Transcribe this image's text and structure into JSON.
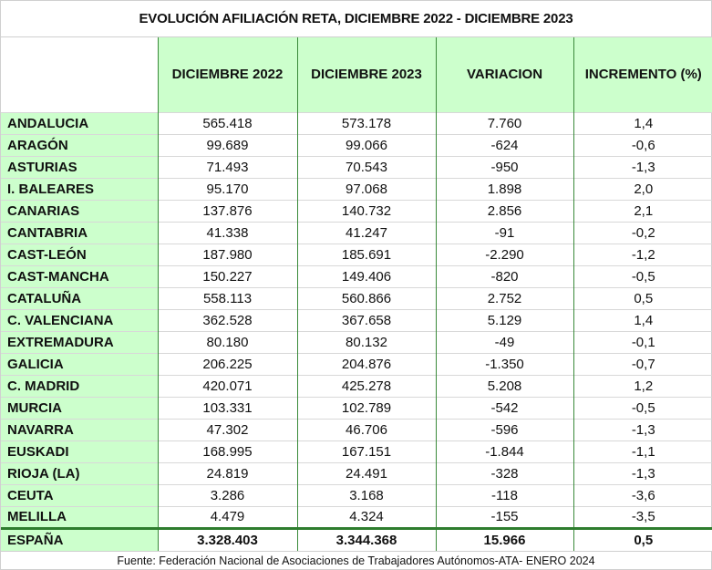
{
  "title": "EVOLUCIÓN AFILIACIÓN  RETA, DICIEMBRE 2022 - DICIEMBRE 2023",
  "headers": [
    "",
    "DICIEMBRE 2022",
    "DICIEMBRE 2023",
    "VARIACION",
    "INCREMENTO (%)"
  ],
  "rows": [
    [
      "ANDALUCIA",
      "565.418",
      "573.178",
      "7.760",
      "1,4"
    ],
    [
      "ARAGÓN",
      "99.689",
      "99.066",
      "-624",
      "-0,6"
    ],
    [
      "ASTURIAS",
      "71.493",
      "70.543",
      "-950",
      "-1,3"
    ],
    [
      "I. BALEARES",
      "95.170",
      "97.068",
      "1.898",
      "2,0"
    ],
    [
      "CANARIAS",
      "137.876",
      "140.732",
      "2.856",
      "2,1"
    ],
    [
      "CANTABRIA",
      "41.338",
      "41.247",
      "-91",
      "-0,2"
    ],
    [
      "CAST-LEÓN",
      "187.980",
      "185.691",
      "-2.290",
      "-1,2"
    ],
    [
      "CAST-MANCHA",
      "150.227",
      "149.406",
      "-820",
      "-0,5"
    ],
    [
      "CATALUÑA",
      "558.113",
      "560.866",
      "2.752",
      "0,5"
    ],
    [
      "C. VALENCIANA",
      "362.528",
      "367.658",
      "5.129",
      "1,4"
    ],
    [
      "EXTREMADURA",
      "80.180",
      "80.132",
      "-49",
      "-0,1"
    ],
    [
      "GALICIA",
      "206.225",
      "204.876",
      "-1.350",
      "-0,7"
    ],
    [
      "C. MADRID",
      "420.071",
      "425.278",
      "5.208",
      "1,2"
    ],
    [
      "MURCIA",
      "103.331",
      "102.789",
      "-542",
      "-0,5"
    ],
    [
      "NAVARRA",
      "47.302",
      "46.706",
      "-596",
      "-1,3"
    ],
    [
      "EUSKADI",
      "168.995",
      "167.151",
      "-1.844",
      "-1,1"
    ],
    [
      "RIOJA (LA)",
      "24.819",
      "24.491",
      "-328",
      "-1,3"
    ],
    [
      "CEUTA",
      "3.286",
      "3.168",
      "-118",
      "-3,6"
    ],
    [
      "MELILLA",
      "4.479",
      "4.324",
      "-155",
      "-3,5"
    ]
  ],
  "total": [
    "ESPAÑA",
    "3.328.403",
    "3.344.368",
    "15.966",
    "0,5"
  ],
  "footer": "Fuente: Federación Nacional de Asociaciones de Trabajadores Autónomos-ATA- ENERO 2024"
}
